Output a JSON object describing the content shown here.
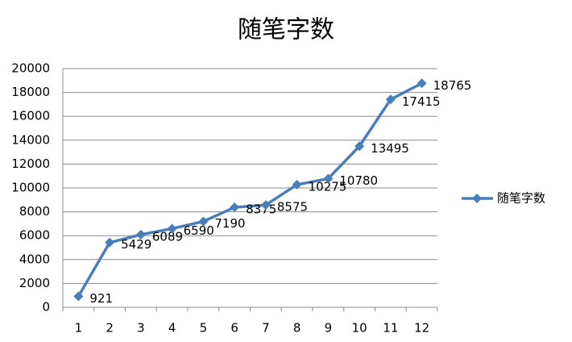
{
  "chart_data": {
    "type": "line",
    "title": "随笔字数",
    "categories": [
      "1",
      "2",
      "3",
      "4",
      "5",
      "6",
      "7",
      "8",
      "9",
      "10",
      "11",
      "12"
    ],
    "series": [
      {
        "name": "随笔字数",
        "color": "#4a7ebb",
        "values": [
          921,
          5429,
          6089,
          6590,
          7190,
          8375,
          8575,
          10275,
          10780,
          13495,
          17415,
          18765
        ]
      }
    ],
    "ylim": [
      0,
      20000
    ],
    "yticks": [
      0,
      2000,
      4000,
      6000,
      8000,
      10000,
      12000,
      14000,
      16000,
      18000,
      20000
    ],
    "grid": true,
    "legend": "right",
    "data_labels": true
  }
}
